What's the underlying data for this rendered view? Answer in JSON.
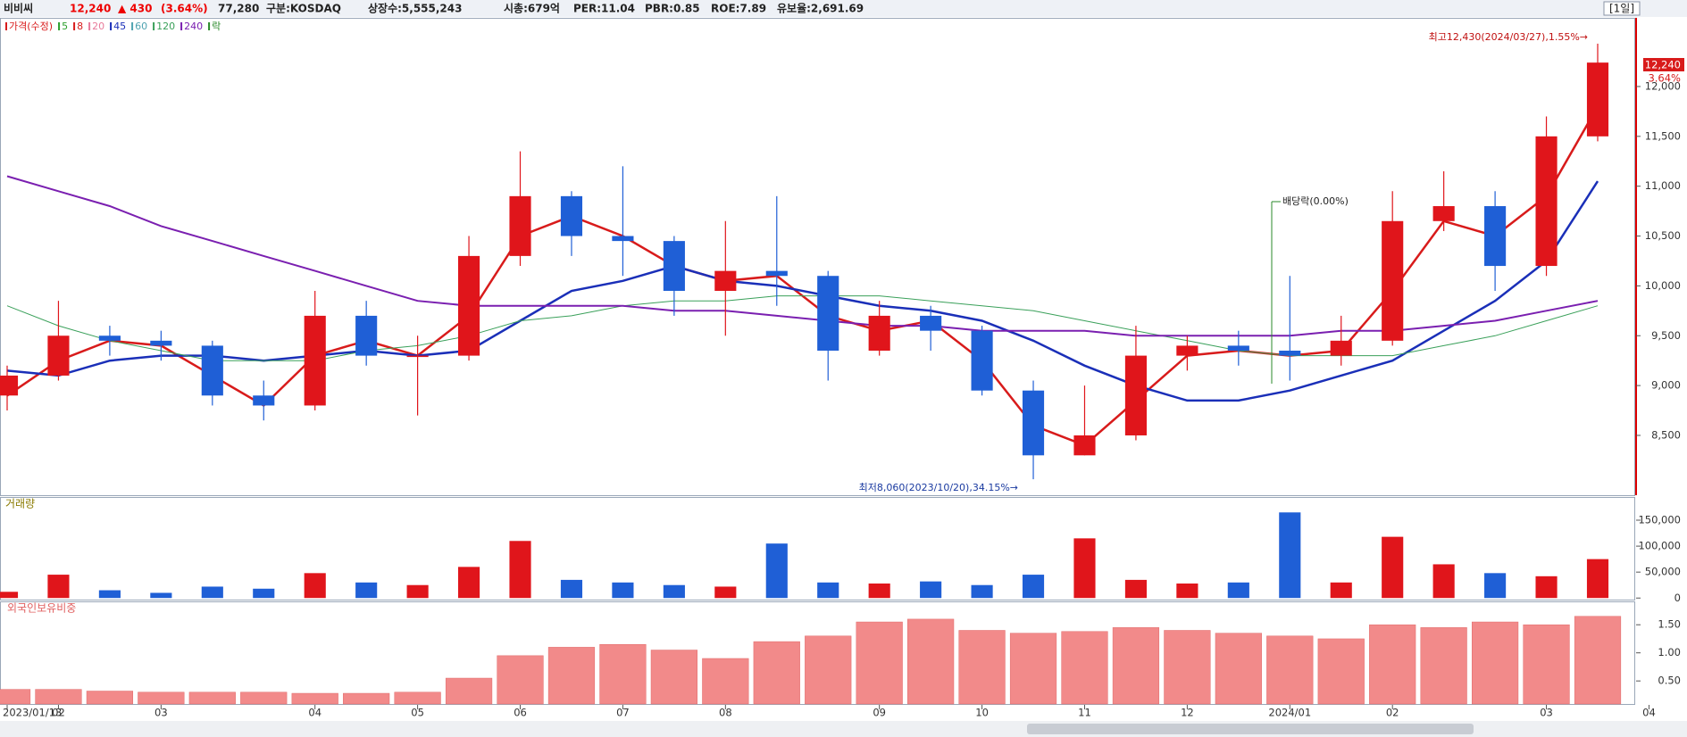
{
  "header": {
    "name": "비비씨",
    "price": "12,240",
    "change": "▲ 430",
    "change_pct": "(3.64%)",
    "volume": "77,280",
    "market": "구분:KOSDAQ",
    "shares": "상장수:5,555,243",
    "cap": "시총:679억",
    "per": "PER:11.04",
    "pbr": "PBR:0.85",
    "roe": "ROE:7.89",
    "reserve": "유보율:2,691.69",
    "period": "[1일]"
  },
  "chart_data": {
    "type": "candlestick",
    "legend": [
      {
        "label": "가격(수정)",
        "color": "#d81b1b"
      },
      {
        "label": "5",
        "color": "#2ca02c"
      },
      {
        "label": "8",
        "color": "#d81b1b"
      },
      {
        "label": "20",
        "color": "#e87a9a"
      },
      {
        "label": "45",
        "color": "#1a2fb8"
      },
      {
        "label": "60",
        "color": "#4fa3b0"
      },
      {
        "label": "120",
        "color": "#3aa05a"
      },
      {
        "label": "240",
        "color": "#7a1fb0"
      },
      {
        "label": "락",
        "color": "#2a8a2a"
      }
    ],
    "categories": [
      "2023/01/13",
      "02",
      null,
      "03",
      null,
      null,
      "04",
      null,
      "05",
      null,
      "06",
      null,
      "07",
      null,
      "08",
      null,
      null,
      "09",
      null,
      "10",
      null,
      "11",
      null,
      "12",
      null,
      "2024/01",
      null,
      "02",
      null,
      null,
      "03",
      null,
      "04"
    ],
    "open": [
      8900,
      9100,
      9500,
      9450,
      9400,
      8900,
      8800,
      9700,
      9300,
      9300,
      10300,
      10900,
      10500,
      10450,
      9950,
      10150,
      10100,
      9350,
      9700,
      9550,
      8950,
      8300,
      8500,
      9300,
      9400,
      9350,
      9300,
      9450,
      10650,
      10800,
      10200,
      11500,
      null
    ],
    "high": [
      9200,
      9850,
      9600,
      9550,
      9450,
      9050,
      9950,
      9850,
      9500,
      10500,
      11350,
      10950,
      11200,
      10500,
      10650,
      10900,
      10150,
      9850,
      9800,
      9600,
      9050,
      9000,
      9600,
      9500,
      9550,
      10100,
      9700,
      10950,
      11150,
      10950,
      11700,
      12430,
      null
    ],
    "low": [
      8750,
      9050,
      9300,
      9250,
      8800,
      8650,
      8750,
      9200,
      8700,
      9250,
      10200,
      10300,
      10100,
      9700,
      9500,
      9800,
      9050,
      9300,
      9350,
      8900,
      8060,
      8300,
      8450,
      9150,
      9200,
      9050,
      9200,
      9400,
      10550,
      9950,
      10100,
      11450,
      null
    ],
    "close": [
      9100,
      9500,
      9450,
      9400,
      8900,
      8800,
      9700,
      9300,
      9300,
      10300,
      10900,
      10500,
      10450,
      9950,
      10150,
      10100,
      9350,
      9700,
      9550,
      8950,
      8300,
      8500,
      9300,
      9400,
      9350,
      9300,
      9450,
      10650,
      10800,
      10200,
      11500,
      12240,
      null
    ],
    "up_color": "#e0151b",
    "down_color": "#1f5fd6",
    "ma": [
      {
        "color": "#d81b1b",
        "width": 2.5,
        "values": [
          8900,
          9250,
          9450,
          9400,
          9100,
          8800,
          9300,
          9450,
          9300,
          9700,
          10500,
          10700,
          10500,
          10200,
          10050,
          10100,
          9700,
          9550,
          9650,
          9250,
          8600,
          8400,
          8850,
          9300,
          9350,
          9300,
          9350,
          9950,
          10650,
          10500,
          10900,
          11800,
          null
        ]
      },
      {
        "color": "#1a2fb8",
        "width": 2.5,
        "values": [
          9150,
          9100,
          9250,
          9300,
          9300,
          9250,
          9300,
          9350,
          9300,
          9350,
          9650,
          9950,
          10050,
          10200,
          10050,
          10000,
          9900,
          9800,
          9750,
          9650,
          9450,
          9200,
          9000,
          8850,
          8850,
          8950,
          9100,
          9250,
          9550,
          9850,
          10250,
          11050,
          null
        ]
      },
      {
        "color": "#3aa05a",
        "width": 1,
        "values": [
          9800,
          9600,
          9450,
          9350,
          9250,
          9250,
          9250,
          9350,
          9400,
          9500,
          9650,
          9700,
          9800,
          9850,
          9850,
          9900,
          9900,
          9900,
          9850,
          9800,
          9750,
          9650,
          9550,
          9450,
          9350,
          9300,
          9300,
          9300,
          9400,
          9500,
          9650,
          9800,
          null
        ]
      },
      {
        "color": "#7a1fb0",
        "width": 2,
        "values": [
          11100,
          10950,
          10800,
          10600,
          10450,
          10300,
          10150,
          10000,
          9850,
          9800,
          9800,
          9800,
          9800,
          9750,
          9750,
          9700,
          9650,
          9600,
          9600,
          9550,
          9550,
          9550,
          9500,
          9500,
          9500,
          9500,
          9550,
          9550,
          9600,
          9650,
          9750,
          9850,
          null
        ]
      }
    ],
    "ylim": [
      7900,
      12680
    ],
    "yticks": [
      {
        "value": 8500,
        "label": "8,500"
      },
      {
        "value": 9000,
        "label": "9,000"
      },
      {
        "value": 9500,
        "label": "9,500"
      },
      {
        "value": 10000,
        "label": "10,000"
      },
      {
        "value": 10500,
        "label": "10,500"
      },
      {
        "value": 11000,
        "label": "11,000"
      },
      {
        "value": 11500,
        "label": "11,500"
      },
      {
        "value": 12000,
        "label": "12,000"
      }
    ],
    "price_box": {
      "price": "12,240",
      "pct": "3.64%"
    },
    "annotations": {
      "high": "최고12,430(2024/03/27),1.55%→",
      "low": "최저8,060(2023/10/20),34.15%→",
      "dividend": "배당락(0.00%)"
    },
    "volume_title": "거래량",
    "volume": [
      12000,
      45000,
      15000,
      10000,
      22000,
      18000,
      48000,
      30000,
      25000,
      60000,
      110000,
      35000,
      30000,
      25000,
      22000,
      105000,
      30000,
      28000,
      32000,
      25000,
      45000,
      115000,
      35000,
      28000,
      30000,
      165000,
      30000,
      118000,
      65000,
      48000,
      42000,
      75000,
      null
    ],
    "volume_ylim": [
      -3000,
      193000
    ],
    "volume_yticks": [
      0,
      {
        "value": 50000,
        "label": "50,000"
      },
      {
        "value": 100000,
        "label": "100,000"
      },
      {
        "value": 150000,
        "label": "150,000"
      }
    ],
    "foreign_title": "외국인보유비중",
    "foreign_ratio": [
      0.35,
      0.35,
      0.32,
      0.3,
      0.3,
      0.3,
      0.28,
      0.28,
      0.3,
      0.55,
      0.95,
      1.1,
      1.15,
      1.05,
      0.9,
      1.2,
      1.3,
      1.55,
      1.6,
      1.4,
      1.35,
      1.38,
      1.45,
      1.4,
      1.35,
      1.3,
      1.25,
      1.5,
      1.45,
      1.55,
      1.5,
      1.65,
      null
    ],
    "foreign_color": "#f28a8a",
    "foreign_ylim": [
      0.09,
      1.9
    ],
    "foreign_yticks": [
      {
        "value": 0.5,
        "label": "0.50"
      },
      {
        "value": 1,
        "label": "1.00"
      },
      {
        "value": 1.5,
        "label": "1.50"
      }
    ]
  }
}
